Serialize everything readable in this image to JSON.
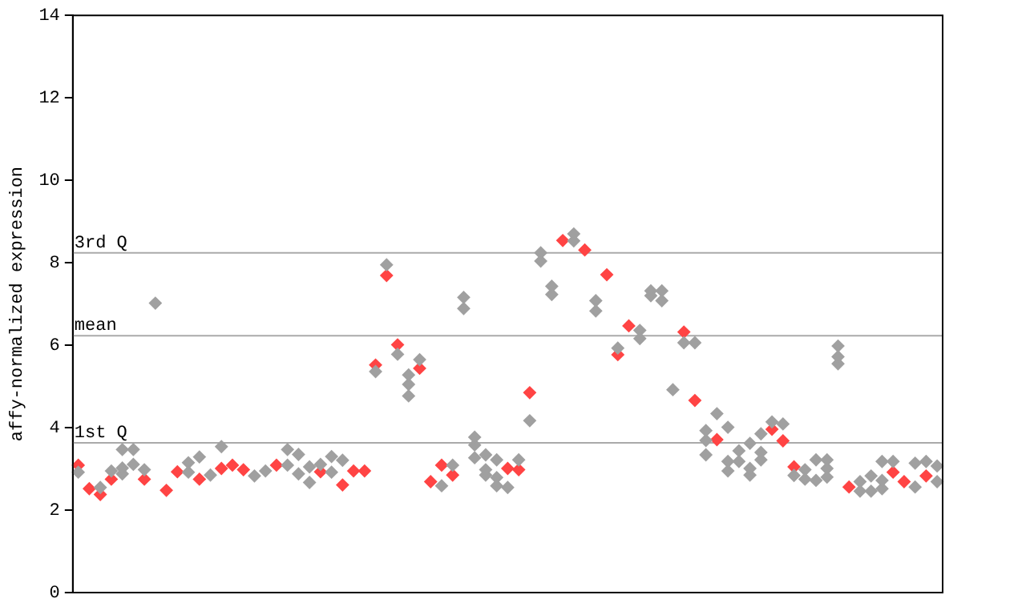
{
  "chart_data": {
    "type": "scatter",
    "ylabel": "affy-normalized expression",
    "categories": [
      null,
      null,
      null,
      null,
      null,
      null,
      null,
      null,
      null,
      null,
      null,
      null,
      null,
      null,
      null,
      null,
      null,
      null,
      null,
      null,
      null,
      null,
      null,
      null,
      null,
      null,
      null,
      null,
      null,
      null,
      null,
      null,
      null,
      null,
      null,
      null,
      null,
      null,
      null,
      null,
      null,
      null,
      null,
      null,
      null,
      null,
      null,
      null,
      null,
      null,
      null,
      null,
      null,
      null,
      null,
      null,
      null,
      null,
      null,
      null,
      null,
      null,
      null,
      null,
      null,
      null,
      null,
      null,
      null,
      null,
      null,
      null,
      null,
      null,
      null,
      null,
      null,
      null,
      null
    ],
    "ylim": [
      0,
      14
    ],
    "yticks": [
      0,
      2,
      4,
      6,
      8,
      10,
      12,
      14
    ],
    "tick_labels": "y",
    "marker": "diamond",
    "ref_lines": [
      {
        "axis": "y",
        "value": 8.24,
        "label": "3rd Q",
        "color": "#aaaaaa"
      },
      {
        "axis": "y",
        "value": 6.23,
        "label": "mean",
        "color": "#aaaaaa"
      },
      {
        "axis": "y",
        "value": 3.63,
        "label": "1st Q",
        "color": "#aaaaaa"
      }
    ],
    "series": [
      {
        "color": "#a0a0a0",
        "values": [
          2.92,
          null,
          2.55,
          2.95,
          3.47,
          3.47,
          2.98,
          7.02,
          null,
          null,
          3.15,
          3.29,
          2.85,
          3.54,
          null,
          null,
          2.83,
          2.95,
          null,
          3.47,
          3.35,
          3.05,
          3.11,
          3.3,
          3.21,
          null,
          null,
          5.36,
          7.95,
          5.78,
          5.28,
          5.65,
          null,
          2.59,
          3.09,
          7.16,
          3.77,
          3.34,
          3.22,
          2.55,
          3.22,
          4.17,
          8.24,
          7.43,
          null,
          8.7,
          null,
          7.08,
          null,
          5.93,
          null,
          6.36,
          7.32,
          7.32,
          4.92,
          6.06,
          6.06,
          3.93,
          4.34,
          4.01,
          3.44,
          3.62,
          3.85,
          4.14,
          4.09,
          2.84,
          2.98,
          3.22,
          3.22,
          5.98,
          null,
          2.69,
          2.83,
          3.18,
          3.18,
          null,
          3.14,
          3.18,
          3.07
        ]
      },
      {
        "color": "#a0a0a0",
        "values": [
          null,
          null,
          null,
          null,
          3.02,
          3.11,
          null,
          null,
          null,
          null,
          2.92,
          null,
          null,
          null,
          null,
          null,
          null,
          null,
          null,
          3.09,
          2.88,
          2.67,
          null,
          2.92,
          null,
          null,
          null,
          null,
          null,
          null,
          5.05,
          null,
          null,
          null,
          null,
          6.89,
          3.58,
          2.98,
          2.79,
          null,
          null,
          null,
          8.04,
          7.23,
          null,
          8.53,
          null,
          6.83,
          null,
          null,
          null,
          6.16,
          7.2,
          7.08,
          null,
          null,
          null,
          3.69,
          null,
          3.18,
          3.18,
          3.01,
          3.4,
          null,
          null,
          null,
          2.75,
          2.72,
          3.01,
          5.72,
          null,
          2.46,
          2.46,
          2.72,
          null,
          null,
          2.56,
          null,
          2.69
        ]
      },
      {
        "color": "#a0a0a0",
        "values": [
          null,
          null,
          null,
          null,
          2.88,
          null,
          null,
          null,
          null,
          null,
          null,
          null,
          null,
          null,
          null,
          null,
          null,
          null,
          null,
          null,
          null,
          null,
          null,
          null,
          null,
          null,
          null,
          null,
          null,
          null,
          4.77,
          null,
          null,
          null,
          null,
          null,
          3.27,
          2.85,
          2.59,
          null,
          null,
          null,
          null,
          null,
          null,
          null,
          null,
          null,
          null,
          null,
          null,
          null,
          null,
          null,
          null,
          null,
          null,
          3.34,
          null,
          2.95,
          null,
          2.85,
          3.22,
          null,
          null,
          null,
          null,
          null,
          2.8,
          5.55,
          null,
          null,
          null,
          2.52,
          null,
          null,
          null,
          null,
          null
        ]
      },
      {
        "color": "#ff4444",
        "values": [
          3.09,
          2.52,
          2.38,
          2.75,
          null,
          null,
          2.75,
          null,
          2.48,
          2.93,
          null,
          2.75,
          null,
          3.01,
          3.09,
          2.98,
          null,
          null,
          3.09,
          null,
          null,
          null,
          2.93,
          null,
          2.61,
          2.95,
          2.95,
          5.52,
          7.69,
          6.01,
          null,
          5.44,
          2.69,
          3.09,
          2.85,
          null,
          null,
          null,
          null,
          3.01,
          2.98,
          4.85,
          null,
          null,
          8.54,
          null,
          8.31,
          null,
          7.71,
          5.77,
          6.47,
          null,
          null,
          null,
          null,
          6.32,
          4.66,
          null,
          3.71,
          null,
          null,
          null,
          null,
          3.96,
          3.68,
          3.05,
          null,
          null,
          null,
          null,
          2.56,
          null,
          null,
          null,
          2.92,
          2.69,
          null,
          2.83,
          null
        ]
      }
    ]
  }
}
